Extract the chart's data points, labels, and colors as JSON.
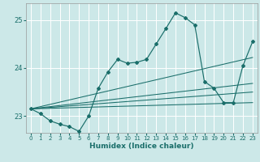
{
  "xlabel": "Humidex (Indice chaleur)",
  "bg_color": "#cce8e8",
  "grid_color": "#ffffff",
  "line_color": "#1a6e6a",
  "xlim": [
    -0.5,
    23.5
  ],
  "ylim": [
    22.65,
    25.35
  ],
  "yticks": [
    23,
    24,
    25
  ],
  "xticks": [
    0,
    1,
    2,
    3,
    4,
    5,
    6,
    7,
    8,
    9,
    10,
    11,
    12,
    13,
    14,
    15,
    16,
    17,
    18,
    19,
    20,
    21,
    22,
    23
  ],
  "series": [
    [
      0,
      23.15
    ],
    [
      1,
      23.05
    ],
    [
      2,
      22.9
    ],
    [
      3,
      22.83
    ],
    [
      4,
      22.78
    ],
    [
      5,
      22.68
    ],
    [
      6,
      23.0
    ],
    [
      7,
      23.58
    ],
    [
      8,
      23.92
    ],
    [
      9,
      24.18
    ],
    [
      10,
      24.1
    ],
    [
      11,
      24.12
    ],
    [
      12,
      24.18
    ],
    [
      13,
      24.5
    ],
    [
      14,
      24.82
    ],
    [
      15,
      25.15
    ],
    [
      16,
      25.05
    ],
    [
      17,
      24.9
    ],
    [
      18,
      23.72
    ],
    [
      19,
      23.58
    ],
    [
      20,
      23.28
    ],
    [
      21,
      23.28
    ],
    [
      22,
      24.05
    ],
    [
      23,
      24.55
    ]
  ],
  "straight_lines": [
    {
      "x": [
        0,
        23
      ],
      "y": [
        23.15,
        23.28
      ]
    },
    {
      "x": [
        0,
        23
      ],
      "y": [
        23.15,
        23.5
      ]
    },
    {
      "x": [
        0,
        23
      ],
      "y": [
        23.15,
        23.68
      ]
    },
    {
      "x": [
        0,
        23
      ],
      "y": [
        23.15,
        24.22
      ]
    }
  ]
}
